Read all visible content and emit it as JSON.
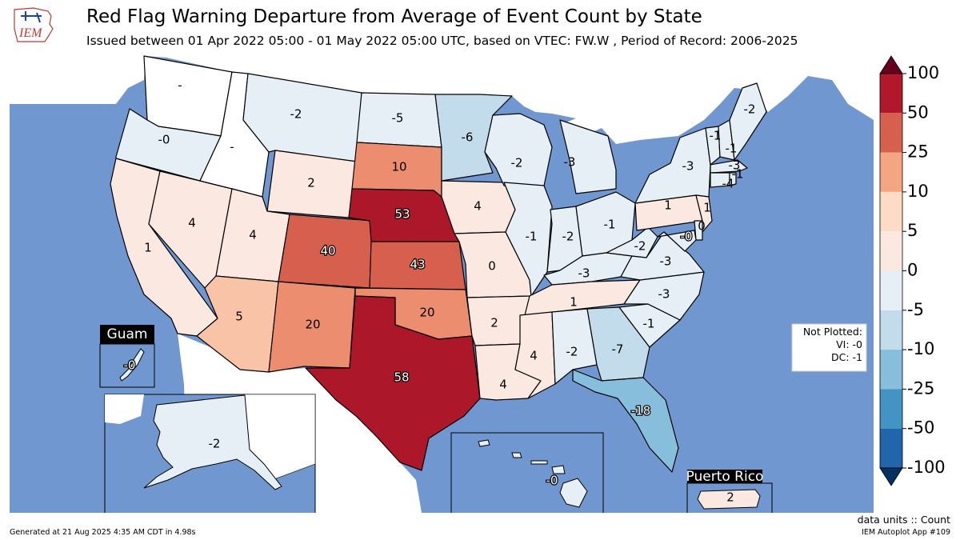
{
  "header": {
    "logo_text": "IEM",
    "title": "Red Flag Warning Departure from Average of Event Count by State",
    "subtitle": "Issued between 01 Apr 2022 05:00 - 01 May 2022 05:00 UTC, based on VTEC: FW.W  , Period of Record: 2006-2025"
  },
  "colors": {
    "water": "#7097cf",
    "land_outside": "#ffffff",
    "no_data": "#ffffff",
    "border": "#000000"
  },
  "legend": {
    "ticks": [
      "100",
      "50",
      "25",
      "10",
      "5",
      "0",
      "-5",
      "-10",
      "-25",
      "-50",
      "-100"
    ],
    "bins": [
      "#67001f",
      "#b2182b",
      "#d6604d",
      "#f4a582",
      "#fddbc7",
      "#fbe9e1",
      "#e6eff5",
      "#c2dcec",
      "#87bedc",
      "#4393c3",
      "#2166ac",
      "#053061"
    ]
  },
  "states": [
    {
      "id": "WA",
      "value": "-",
      "color": "#ffffff",
      "halo": false
    },
    {
      "id": "OR",
      "value": "-0",
      "color": "#e6eff5",
      "halo": false
    },
    {
      "id": "CA",
      "value": "1",
      "color": "#fbe9e1",
      "halo": false
    },
    {
      "id": "NV",
      "value": "4",
      "color": "#fbe9e1",
      "halo": false
    },
    {
      "id": "ID",
      "value": "-",
      "color": "#ffffff",
      "halo": false
    },
    {
      "id": "MT",
      "value": "-2",
      "color": "#e6eff5",
      "halo": false
    },
    {
      "id": "WY",
      "value": "2",
      "color": "#fbe9e1",
      "halo": false
    },
    {
      "id": "UT",
      "value": "4",
      "color": "#fbe9e1",
      "halo": false
    },
    {
      "id": "AZ",
      "value": "5",
      "color": "#f9c3a8",
      "halo": false
    },
    {
      "id": "CO",
      "value": "40",
      "color": "#d6604d",
      "halo": true
    },
    {
      "id": "NM",
      "value": "20",
      "color": "#eb8d6e",
      "halo": false
    },
    {
      "id": "ND",
      "value": "-5",
      "color": "#e6eff5",
      "halo": false
    },
    {
      "id": "SD",
      "value": "10",
      "color": "#eb8d6e",
      "halo": false
    },
    {
      "id": "NE",
      "value": "53",
      "color": "#ac1829",
      "halo": true
    },
    {
      "id": "KS",
      "value": "43",
      "color": "#d6604d",
      "halo": true
    },
    {
      "id": "OK",
      "value": "20",
      "color": "#eb8d6e",
      "halo": false
    },
    {
      "id": "TX",
      "value": "58",
      "color": "#ac1829",
      "halo": true
    },
    {
      "id": "MN",
      "value": "-6",
      "color": "#c2dcec",
      "halo": false
    },
    {
      "id": "IA",
      "value": "4",
      "color": "#fbe9e1",
      "halo": false
    },
    {
      "id": "MO",
      "value": "0",
      "color": "#fbe9e1",
      "halo": false
    },
    {
      "id": "AR",
      "value": "2",
      "color": "#fbe9e1",
      "halo": false
    },
    {
      "id": "LA",
      "value": "4",
      "color": "#fbe9e1",
      "halo": false
    },
    {
      "id": "WI",
      "value": "-2",
      "color": "#e6eff5",
      "halo": false
    },
    {
      "id": "IL",
      "value": "-1",
      "color": "#e6eff5",
      "halo": false
    },
    {
      "id": "MI",
      "value": "-3",
      "color": "#e6eff5",
      "halo": false
    },
    {
      "id": "IN",
      "value": "-2",
      "color": "#e6eff5",
      "halo": false
    },
    {
      "id": "OH",
      "value": "-1",
      "color": "#e6eff5",
      "halo": false
    },
    {
      "id": "KY",
      "value": "-3",
      "color": "#e6eff5",
      "halo": false
    },
    {
      "id": "TN",
      "value": "1",
      "color": "#fbe9e1",
      "halo": false
    },
    {
      "id": "MS",
      "value": "4",
      "color": "#fbe9e1",
      "halo": false
    },
    {
      "id": "AL",
      "value": "-2",
      "color": "#e6eff5",
      "halo": false
    },
    {
      "id": "GA",
      "value": "-7",
      "color": "#c2dcec",
      "halo": false
    },
    {
      "id": "FL",
      "value": "-18",
      "color": "#87bedc",
      "halo": true
    },
    {
      "id": "SC",
      "value": "-1",
      "color": "#e6eff5",
      "halo": false
    },
    {
      "id": "NC",
      "value": "-3",
      "color": "#e6eff5",
      "halo": false
    },
    {
      "id": "VA",
      "value": "-3",
      "color": "#e6eff5",
      "halo": false
    },
    {
      "id": "WV",
      "value": "-2",
      "color": "#e6eff5",
      "halo": false
    },
    {
      "id": "PA",
      "value": "1",
      "color": "#fbe9e1",
      "halo": false
    },
    {
      "id": "NY",
      "value": "-3",
      "color": "#e6eff5",
      "halo": false
    },
    {
      "id": "NJ",
      "value": "1",
      "color": "#fbe9e1",
      "halo": false
    },
    {
      "id": "DE",
      "value": "0",
      "color": "#e6eff5",
      "halo": false
    },
    {
      "id": "MD",
      "value": "-0",
      "color": "#e6eff5",
      "halo": true
    },
    {
      "id": "VT",
      "value": "-1",
      "color": "#e6eff5",
      "halo": false
    },
    {
      "id": "NH",
      "value": "-1",
      "color": "#e6eff5",
      "halo": false
    },
    {
      "id": "MA",
      "value": "-3",
      "color": "#e6eff5",
      "halo": false
    },
    {
      "id": "CT",
      "value": "-1",
      "color": "#e6eff5",
      "halo": false
    },
    {
      "id": "RI",
      "value": "-4",
      "color": "#e6eff5",
      "halo": false
    },
    {
      "id": "ME",
      "value": "-2",
      "color": "#e6eff5",
      "halo": false
    }
  ],
  "insets": {
    "guam": {
      "title": "Guam",
      "value": "-0",
      "color": "#e6eff5"
    },
    "alaska": {
      "value": "-2",
      "color": "#e6eff5"
    },
    "hawaii": {
      "value": "-0",
      "color": "#e6eff5"
    },
    "puerto_rico": {
      "title": "Puerto Rico",
      "value": "2",
      "color": "#fbe9e1"
    }
  },
  "not_plotted": {
    "heading": "Not Plotted:",
    "lines": [
      "VI: -0",
      "DC: -1"
    ]
  },
  "footer": {
    "generated": "Generated at 21 Aug 2025 4:35 AM CDT in 4.98s",
    "units": "data units :: Count",
    "app": "IEM Autoplot App #109"
  }
}
